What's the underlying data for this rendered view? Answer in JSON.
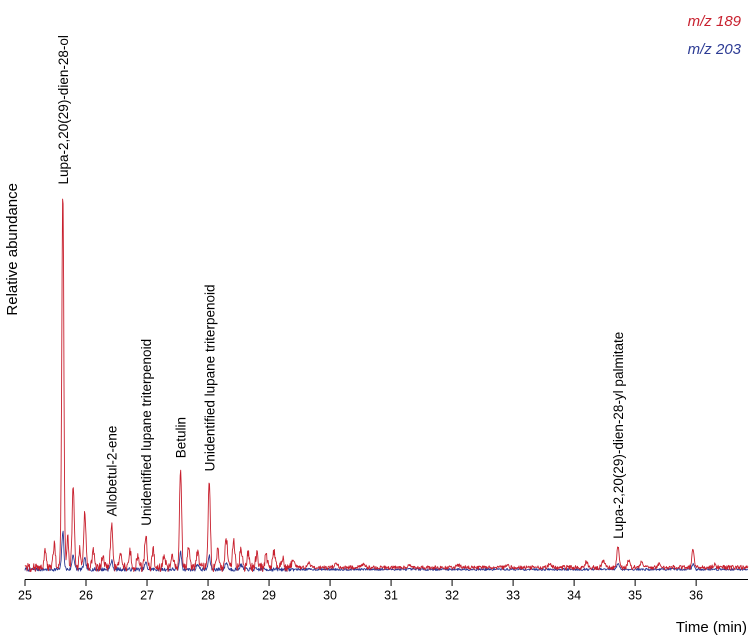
{
  "chart_data": {
    "type": "line",
    "title": "",
    "xlabel": "Time (min)",
    "ylabel": "Relative abundance",
    "xlim": [
      25,
      36.85
    ],
    "xticks": [
      25,
      26,
      27,
      28,
      29,
      30,
      31,
      32,
      33,
      34,
      35,
      36
    ],
    "grid": false,
    "legend_position": "top-right",
    "series": [
      {
        "name": "m/z 189",
        "color": "#c8202e",
        "baseline": 0.012,
        "noise": 0.005,
        "noise_regions": [
          {
            "from": 25.0,
            "to": 29.4,
            "amp": 0.012
          },
          {
            "from": 29.4,
            "to": 33.8,
            "amp": 0.005
          },
          {
            "from": 33.8,
            "to": 36.9,
            "amp": 0.006
          }
        ],
        "peaks": [
          [
            25.33,
            0.045,
            0.02
          ],
          [
            25.48,
            0.06,
            0.018
          ],
          [
            25.62,
            1.0,
            0.017
          ],
          [
            25.7,
            0.08,
            0.015
          ],
          [
            25.79,
            0.21,
            0.018
          ],
          [
            25.9,
            0.05,
            0.015
          ],
          [
            25.98,
            0.155,
            0.018
          ],
          [
            26.12,
            0.045,
            0.018
          ],
          [
            26.28,
            0.03,
            0.02
          ],
          [
            26.42,
            0.115,
            0.018
          ],
          [
            26.56,
            0.035,
            0.02
          ],
          [
            26.72,
            0.045,
            0.02
          ],
          [
            26.85,
            0.035,
            0.018
          ],
          [
            26.98,
            0.09,
            0.018
          ],
          [
            27.1,
            0.05,
            0.018
          ],
          [
            27.28,
            0.035,
            0.02
          ],
          [
            27.42,
            0.03,
            0.018
          ],
          [
            27.55,
            0.27,
            0.017
          ],
          [
            27.68,
            0.055,
            0.018
          ],
          [
            27.83,
            0.045,
            0.018
          ],
          [
            28.02,
            0.235,
            0.017
          ],
          [
            28.16,
            0.05,
            0.018
          ],
          [
            28.3,
            0.075,
            0.02
          ],
          [
            28.42,
            0.07,
            0.02
          ],
          [
            28.54,
            0.05,
            0.02
          ],
          [
            28.66,
            0.04,
            0.02
          ],
          [
            28.8,
            0.035,
            0.022
          ],
          [
            28.95,
            0.03,
            0.02
          ],
          [
            29.08,
            0.045,
            0.02
          ],
          [
            29.22,
            0.025,
            0.02
          ],
          [
            29.4,
            0.018,
            0.025
          ],
          [
            29.65,
            0.012,
            0.03
          ],
          [
            30.1,
            0.008,
            0.03
          ],
          [
            30.55,
            0.007,
            0.03
          ],
          [
            31.3,
            0.007,
            0.03
          ],
          [
            32.1,
            0.006,
            0.03
          ],
          [
            32.9,
            0.007,
            0.03
          ],
          [
            33.6,
            0.008,
            0.03
          ],
          [
            34.2,
            0.014,
            0.025
          ],
          [
            34.48,
            0.018,
            0.022
          ],
          [
            34.72,
            0.055,
            0.02
          ],
          [
            34.9,
            0.022,
            0.02
          ],
          [
            35.1,
            0.012,
            0.025
          ],
          [
            35.4,
            0.01,
            0.025
          ],
          [
            35.95,
            0.05,
            0.018
          ],
          [
            36.3,
            0.008,
            0.025
          ]
        ]
      },
      {
        "name": "m/z 203",
        "color": "#2c3b94",
        "baseline": 0.007,
        "noise": 0.003,
        "noise_regions": [
          {
            "from": 25.0,
            "to": 29.4,
            "amp": 0.005
          }
        ],
        "peaks": [
          [
            25.62,
            0.1,
            0.017
          ],
          [
            25.79,
            0.04,
            0.018
          ],
          [
            25.98,
            0.028,
            0.018
          ],
          [
            26.42,
            0.022,
            0.018
          ],
          [
            26.98,
            0.018,
            0.018
          ],
          [
            27.55,
            0.045,
            0.017
          ],
          [
            27.83,
            0.015,
            0.018
          ],
          [
            28.02,
            0.035,
            0.017
          ],
          [
            28.3,
            0.018,
            0.02
          ],
          [
            28.54,
            0.012,
            0.02
          ],
          [
            34.72,
            0.016,
            0.02
          ],
          [
            35.95,
            0.014,
            0.018
          ]
        ]
      }
    ],
    "annotations": [
      {
        "label": "Lupa-2,20(29)-dien-28-ol",
        "x": 25.62
      },
      {
        "label": "Allobetul-2-ene",
        "x": 26.42
      },
      {
        "label": "Unidentified lupane triterpenoid",
        "x": 26.98
      },
      {
        "label": "Betulin",
        "x": 27.55
      },
      {
        "label": "Unidentified lupane triterpenoid",
        "x": 28.02
      },
      {
        "label": "Lupa-2,20(29)-dien-28-yl palmitate",
        "x": 34.72
      }
    ]
  }
}
